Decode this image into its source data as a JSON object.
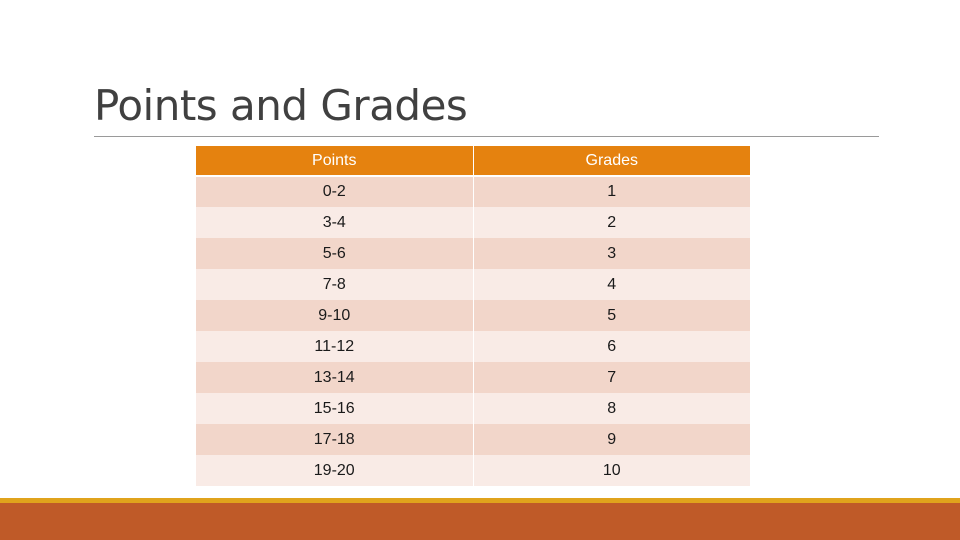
{
  "slide": {
    "title": "Points and Grades"
  },
  "table": {
    "headers": {
      "points": "Points",
      "grades": "Grades"
    },
    "rows": [
      {
        "points": "0-2",
        "grade": "1"
      },
      {
        "points": "3-4",
        "grade": "2"
      },
      {
        "points": "5-6",
        "grade": "3"
      },
      {
        "points": "7-8",
        "grade": "4"
      },
      {
        "points": "9-10",
        "grade": "5"
      },
      {
        "points": "11-12",
        "grade": "6"
      },
      {
        "points": "13-14",
        "grade": "7"
      },
      {
        "points": "15-16",
        "grade": "8"
      },
      {
        "points": "17-18",
        "grade": "9"
      },
      {
        "points": "19-20",
        "grade": "10"
      }
    ]
  },
  "colors": {
    "header_bg": "#e5820f",
    "row_odd_bg": "#f2d6ca",
    "row_even_bg": "#f9ebe6",
    "footer_gold": "#e0a31c",
    "footer_rust": "#bf5a28"
  }
}
